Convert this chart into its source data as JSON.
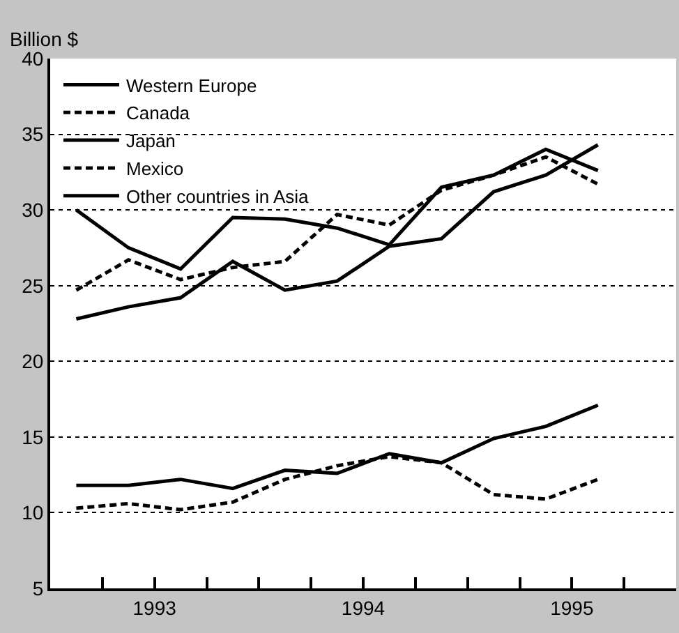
{
  "chart_data": {
    "type": "line",
    "ylabel": "Billion $",
    "x": [
      1993.125,
      1993.375,
      1993.625,
      1993.875,
      1994.125,
      1994.375,
      1994.625,
      1994.875,
      1995.125,
      1995.375,
      1995.625
    ],
    "xlim": [
      1993,
      1996
    ],
    "xticks": [
      {
        "value": 1993.25,
        "label": null
      },
      {
        "value": 1993.5,
        "label": "1993"
      },
      {
        "value": 1993.75,
        "label": null
      },
      {
        "value": 1994,
        "label": null
      },
      {
        "value": 1994.25,
        "label": null
      },
      {
        "value": 1994.5,
        "label": "1994"
      },
      {
        "value": 1994.75,
        "label": null
      },
      {
        "value": 1995,
        "label": null
      },
      {
        "value": 1995.25,
        "label": null
      },
      {
        "value": 1995.5,
        "label": "1995"
      },
      {
        "value": 1995.75,
        "label": null
      }
    ],
    "ylim": [
      5,
      40
    ],
    "yticks": [
      5,
      10,
      15,
      20,
      25,
      30,
      35,
      40
    ],
    "grid": "y",
    "legend": "top left",
    "marker": "none",
    "series": [
      {
        "name": "Western Europe",
        "color": "#000000",
        "line_style": "solid",
        "values": [
          30.0,
          27.5,
          26.1,
          29.5,
          29.4,
          28.8,
          27.7,
          31.5,
          32.3,
          34.0,
          32.6
        ]
      },
      {
        "name": "Canada",
        "color": "#000000",
        "line_style": "dashed",
        "values": [
          24.7,
          26.7,
          25.4,
          26.2,
          26.6,
          29.7,
          29.0,
          31.3,
          32.3,
          33.5,
          31.7
        ]
      },
      {
        "name": "Japan",
        "color": "#000000",
        "line_style": "solid",
        "values": [
          11.8,
          11.8,
          12.2,
          11.6,
          12.8,
          12.6,
          13.9,
          13.3,
          14.9,
          15.7,
          17.1
        ]
      },
      {
        "name": "Mexico",
        "color": "#000000",
        "line_style": "dashed",
        "values": [
          10.3,
          10.6,
          10.2,
          10.7,
          12.2,
          13.1,
          13.7,
          13.3,
          11.2,
          10.9,
          12.2
        ]
      },
      {
        "name": "Other countries in Asia",
        "color": "#000000",
        "line_style": "solid",
        "values": [
          22.8,
          23.6,
          24.2,
          26.6,
          24.7,
          25.3,
          27.6,
          28.1,
          31.2,
          32.3,
          34.3
        ]
      }
    ]
  }
}
